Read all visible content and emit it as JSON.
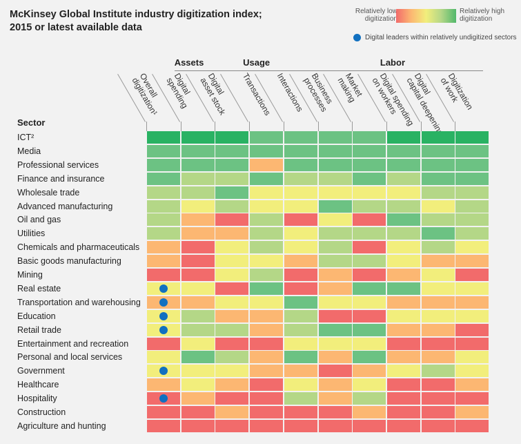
{
  "title": "McKinsey Global Institute industry digitization index; 2015 or latest available data",
  "legend": {
    "low": "Relatively low digitization",
    "high": "Relatively high digitization",
    "leaders": "Digital leaders within relatively undigitized sectors"
  },
  "colors": {
    "1": "#f26b6b",
    "2": "#fcb772",
    "3": "#f2ee7c",
    "4": "#b4d787",
    "5": "#6cc283",
    "6": "#29b263",
    "leader": "#1170c0"
  },
  "chart_data": {
    "type": "heatmap",
    "row_header": "Sector",
    "groups": [
      {
        "label": "Assets",
        "columns": [
          1,
          2
        ]
      },
      {
        "label": "Usage",
        "columns": [
          3,
          4,
          5,
          6
        ]
      },
      {
        "label": "Labor",
        "columns": [
          7,
          8,
          9
        ]
      }
    ],
    "columns": [
      "Overall digitization¹",
      "Digital spending",
      "Digital asset stock",
      "Transactions",
      "Interactions",
      "Business processes",
      "Market making",
      "Digital spending on workers",
      "Digital capital deepening",
      "Digitization of work"
    ],
    "scale": "1 = relatively low digitization … 6 = relatively high digitization",
    "rows": [
      {
        "sector": "ICT²",
        "values": [
          6,
          6,
          6,
          5,
          5,
          5,
          5,
          6,
          6,
          6
        ]
      },
      {
        "sector": "Media",
        "values": [
          5,
          5,
          5,
          5,
          5,
          5,
          5,
          5,
          5,
          5
        ]
      },
      {
        "sector": "Professional services",
        "values": [
          5,
          5,
          5,
          2,
          5,
          5,
          5,
          5,
          5,
          5
        ]
      },
      {
        "sector": "Finance and insurance",
        "values": [
          5,
          4,
          4,
          5,
          4,
          4,
          5,
          4,
          5,
          5
        ]
      },
      {
        "sector": "Wholesale trade",
        "values": [
          4,
          4,
          5,
          3,
          3,
          3,
          3,
          3,
          4,
          4
        ]
      },
      {
        "sector": "Advanced manufacturing",
        "values": [
          4,
          3,
          4,
          3,
          3,
          5,
          4,
          4,
          3,
          4
        ]
      },
      {
        "sector": "Oil and gas",
        "values": [
          4,
          2,
          1,
          4,
          1,
          3,
          1,
          5,
          4,
          4
        ]
      },
      {
        "sector": "Utilities",
        "values": [
          4,
          2,
          2,
          4,
          3,
          4,
          4,
          4,
          5,
          4
        ]
      },
      {
        "sector": "Chemicals and pharmaceuticals",
        "values": [
          2,
          1,
          3,
          4,
          3,
          4,
          1,
          3,
          4,
          3
        ]
      },
      {
        "sector": "Basic goods manufacturing",
        "values": [
          2,
          1,
          3,
          3,
          2,
          4,
          4,
          3,
          2,
          2
        ]
      },
      {
        "sector": "Mining",
        "values": [
          1,
          1,
          3,
          4,
          1,
          2,
          1,
          2,
          3,
          1
        ]
      },
      {
        "sector": "Real estate",
        "values": [
          3,
          3,
          1,
          5,
          1,
          2,
          5,
          5,
          3,
          3
        ],
        "leader": true
      },
      {
        "sector": "Transportation and warehousing",
        "values": [
          2,
          2,
          3,
          3,
          5,
          3,
          3,
          2,
          2,
          2
        ],
        "leader": true
      },
      {
        "sector": "Education",
        "values": [
          3,
          4,
          2,
          2,
          4,
          1,
          1,
          3,
          3,
          3
        ],
        "leader": true
      },
      {
        "sector": "Retail trade",
        "values": [
          3,
          4,
          4,
          2,
          4,
          5,
          5,
          2,
          2,
          1
        ],
        "leader": true
      },
      {
        "sector": "Entertainment and recreation",
        "values": [
          1,
          3,
          1,
          1,
          3,
          3,
          3,
          1,
          1,
          1
        ]
      },
      {
        "sector": "Personal and local services",
        "values": [
          3,
          5,
          4,
          2,
          5,
          2,
          5,
          2,
          2,
          3
        ]
      },
      {
        "sector": "Government",
        "values": [
          3,
          3,
          3,
          2,
          2,
          1,
          2,
          3,
          4,
          3
        ],
        "leader": true
      },
      {
        "sector": "Healthcare",
        "values": [
          2,
          3,
          2,
          1,
          3,
          2,
          3,
          1,
          1,
          2
        ]
      },
      {
        "sector": "Hospitality",
        "values": [
          1,
          2,
          1,
          1,
          4,
          2,
          4,
          1,
          1,
          1
        ],
        "leader": true
      },
      {
        "sector": "Construction",
        "values": [
          1,
          1,
          2,
          1,
          1,
          1,
          2,
          1,
          1,
          2
        ]
      },
      {
        "sector": "Agriculture and hunting",
        "values": [
          1,
          1,
          1,
          1,
          1,
          1,
          1,
          1,
          1,
          1
        ]
      }
    ]
  }
}
